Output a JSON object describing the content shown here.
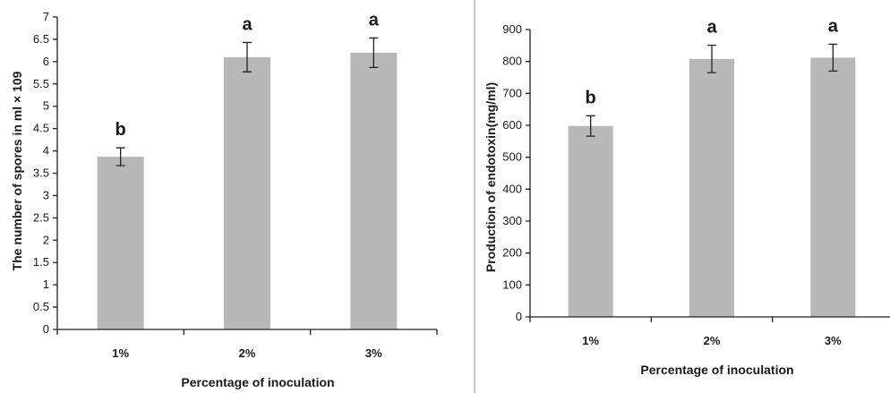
{
  "chart_data": [
    {
      "type": "bar",
      "categories": [
        "1%",
        "2%",
        "3%"
      ],
      "values": [
        3.87,
        6.1,
        6.2
      ],
      "errors": [
        0.2,
        0.33,
        0.33
      ],
      "letters": [
        "b",
        "a",
        "a"
      ],
      "xlabel": "Percentage of inoculation",
      "ylabel": "The number of spores in ml × 109",
      "ylim": [
        0,
        7
      ],
      "yticks": [
        "0",
        "0.5",
        "1",
        "1.5",
        "2",
        "2.5",
        "3",
        "3.5",
        "4",
        "4.5",
        "5",
        "5.5",
        "6",
        "6.5",
        "7"
      ],
      "bar_color": "#b8b8b8",
      "grid": false
    },
    {
      "type": "bar",
      "categories": [
        "1%",
        "2%",
        "3%"
      ],
      "values": [
        598,
        808,
        812
      ],
      "errors": [
        32,
        43,
        42
      ],
      "letters": [
        "b",
        "a",
        "a"
      ],
      "xlabel": "Percentage of inoculation",
      "ylabel": "Production of endotoxin(mg/ml)",
      "ylim": [
        0,
        900
      ],
      "yticks": [
        "0",
        "100",
        "200",
        "300",
        "400",
        "500",
        "600",
        "700",
        "800",
        "900"
      ],
      "bar_color": "#b8b8b8",
      "grid": false
    }
  ]
}
